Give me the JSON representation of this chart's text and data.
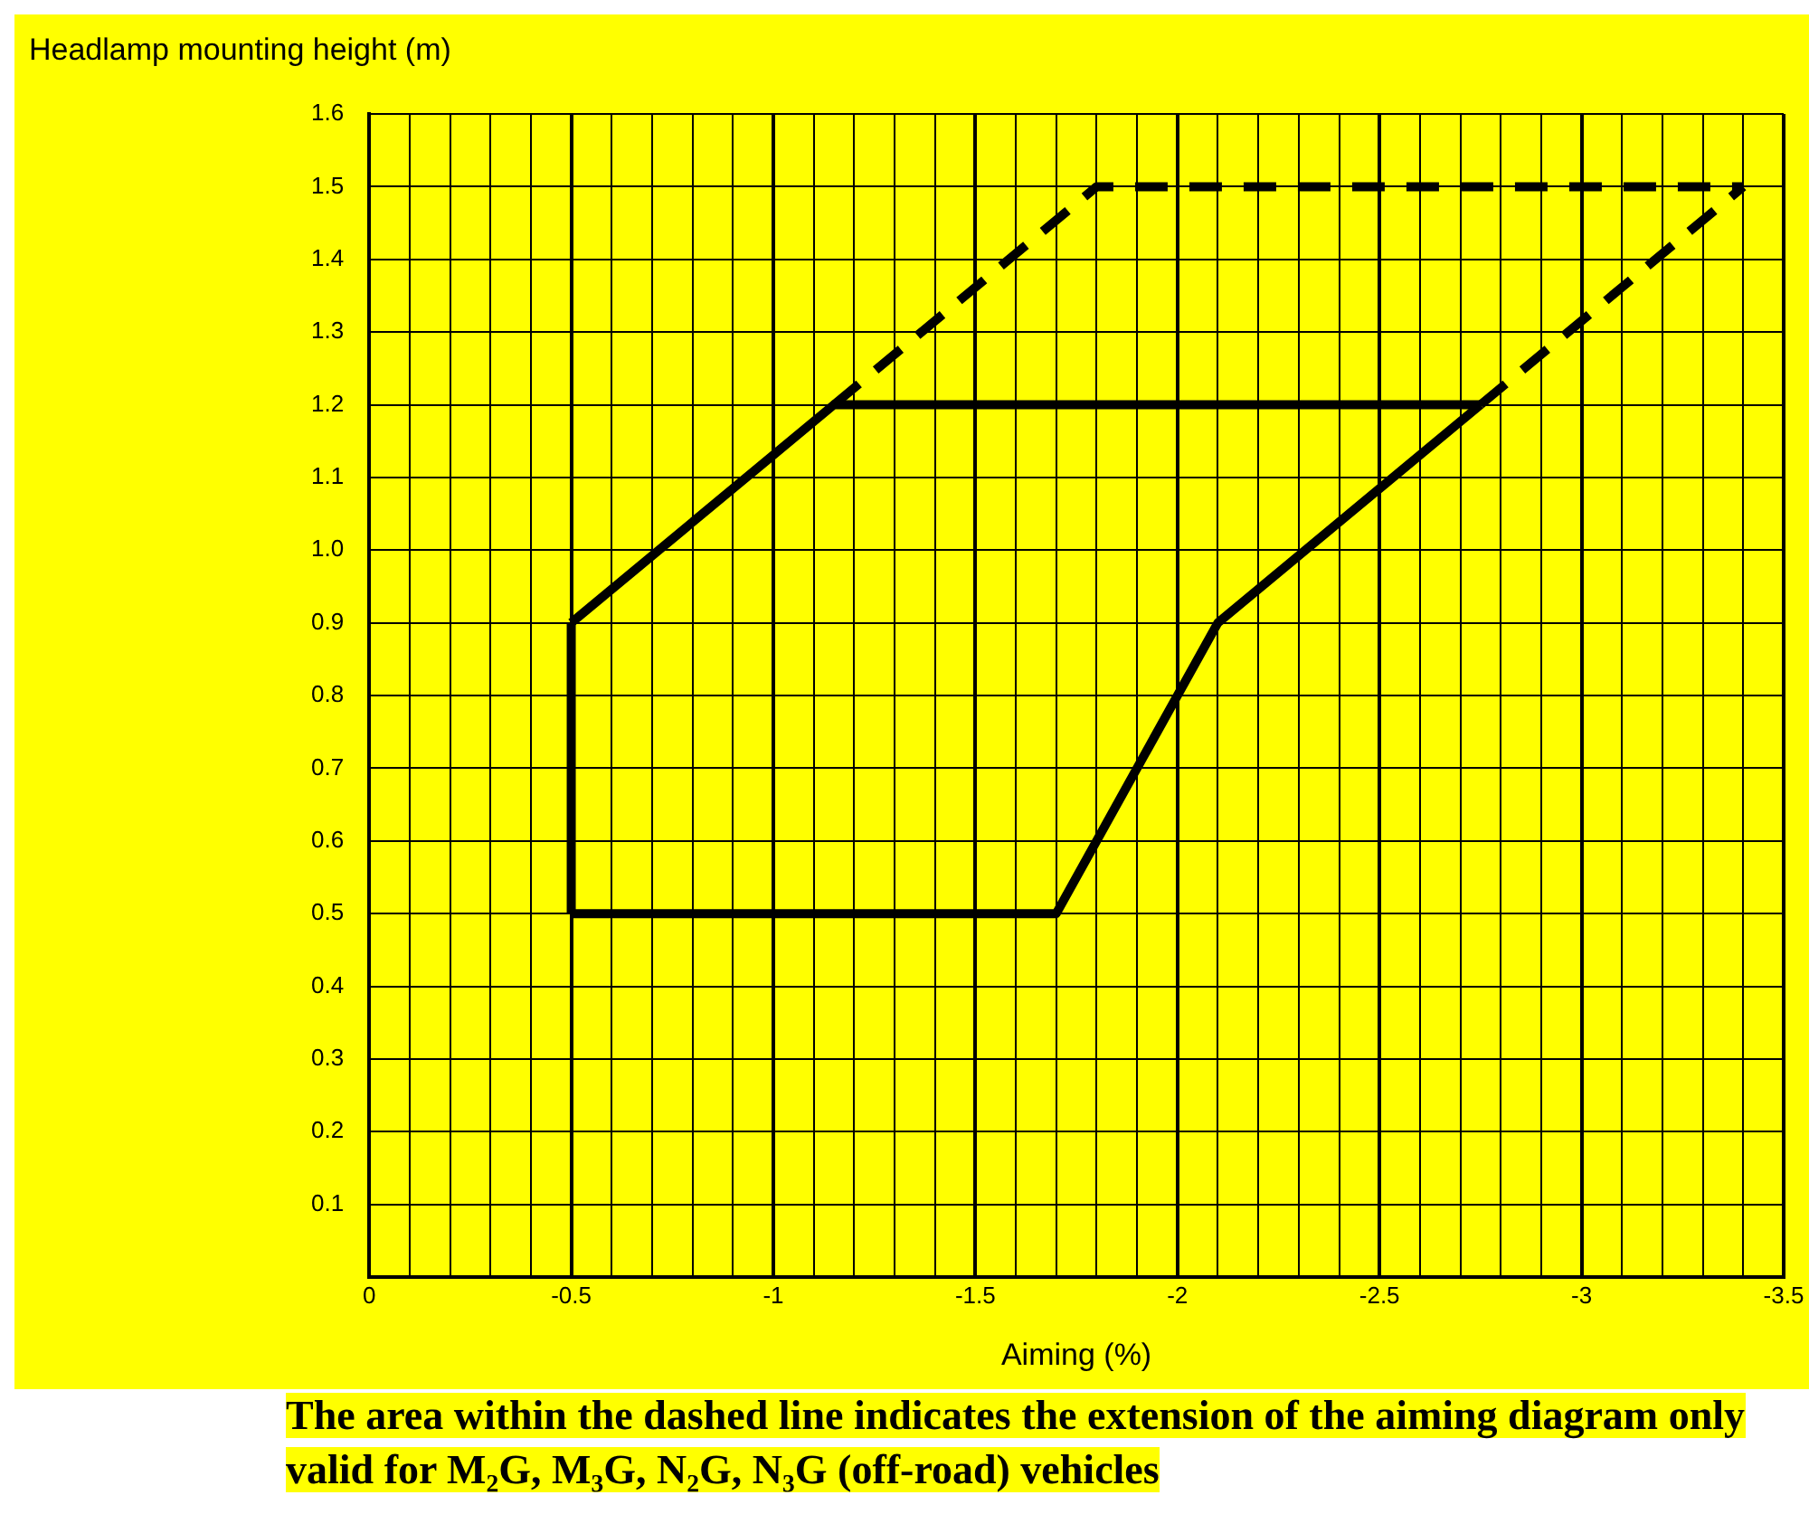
{
  "chart_data": {
    "type": "line",
    "ylabel": "Headlamp mounting height (m)",
    "xlabel": "Aiming (%)",
    "annotations": [
      "The area within the dashed line indicates the extension of the aiming diagram only valid for M₂G, M₃G, N₂G, N₃G (off-road) vehicles"
    ],
    "series": [
      {
        "color": "#000000",
        "line_style": "solid",
        "x": [
          -0.5,
          -1.15,
          -2.75
        ],
        "values": [
          0.9,
          1.2,
          1.2
        ]
      },
      {
        "color": "#000000",
        "line_style": "solid",
        "x": [
          -0.5,
          -1.7,
          -2.1,
          -2.75
        ],
        "values": [
          0.5,
          0.5,
          0.9,
          1.2
        ]
      },
      {
        "color": "#000000",
        "line_style": "solid",
        "x": [
          -0.5,
          -0.5
        ],
        "values": [
          0.5,
          0.9
        ]
      },
      {
        "color": "#000000",
        "line_style": "dashed",
        "x": [
          -1.15,
          -1.8,
          -3.4
        ],
        "values": [
          1.2,
          1.5,
          1.5
        ]
      },
      {
        "color": "#000000",
        "line_style": "dashed",
        "x": [
          -2.75,
          -3.4
        ],
        "values": [
          1.2,
          1.5
        ]
      }
    ],
    "xlim": [
      0,
      -3.5
    ],
    "ylim": [
      0,
      1.6
    ],
    "xticks": [
      0,
      {
        "value": -0.1,
        "label": null
      },
      {
        "value": -0.2,
        "label": null
      },
      {
        "value": -0.3,
        "label": null
      },
      {
        "value": -0.4,
        "label": null
      },
      -0.5,
      {
        "value": -0.6,
        "label": null
      },
      {
        "value": -0.7,
        "label": null
      },
      {
        "value": -0.8,
        "label": null
      },
      {
        "value": -0.9,
        "label": null
      },
      -1,
      {
        "value": -1.1,
        "label": null
      },
      {
        "value": -1.2,
        "label": null
      },
      {
        "value": -1.3,
        "label": null
      },
      {
        "value": -1.4,
        "label": null
      },
      -1.5,
      {
        "value": -1.6,
        "label": null
      },
      {
        "value": -1.7,
        "label": null
      },
      {
        "value": -1.8,
        "label": null
      },
      {
        "value": -1.9,
        "label": null
      },
      -2,
      {
        "value": -2.1,
        "label": null
      },
      {
        "value": -2.2,
        "label": null
      },
      {
        "value": -2.3,
        "label": null
      },
      {
        "value": -2.4,
        "label": null
      },
      -2.5,
      {
        "value": -2.6,
        "label": null
      },
      {
        "value": -2.7,
        "label": null
      },
      {
        "value": -2.8,
        "label": null
      },
      {
        "value": -2.9,
        "label": null
      },
      -3,
      {
        "value": -3.1,
        "label": null
      },
      {
        "value": -3.2,
        "label": null
      },
      {
        "value": -3.3,
        "label": null
      },
      {
        "value": -3.4,
        "label": null
      },
      -3.5
    ],
    "yticks": [
      {
        "value": 0,
        "label": null
      },
      0.1,
      0.2,
      0.3,
      0.4,
      0.5,
      0.6,
      0.7,
      0.8,
      0.9,
      {
        "value": 1,
        "label": "1.0"
      },
      1.1,
      1.2,
      1.3,
      1.4,
      1.5,
      1.6
    ],
    "grid": true,
    "legend": false,
    "marker": "none"
  }
}
